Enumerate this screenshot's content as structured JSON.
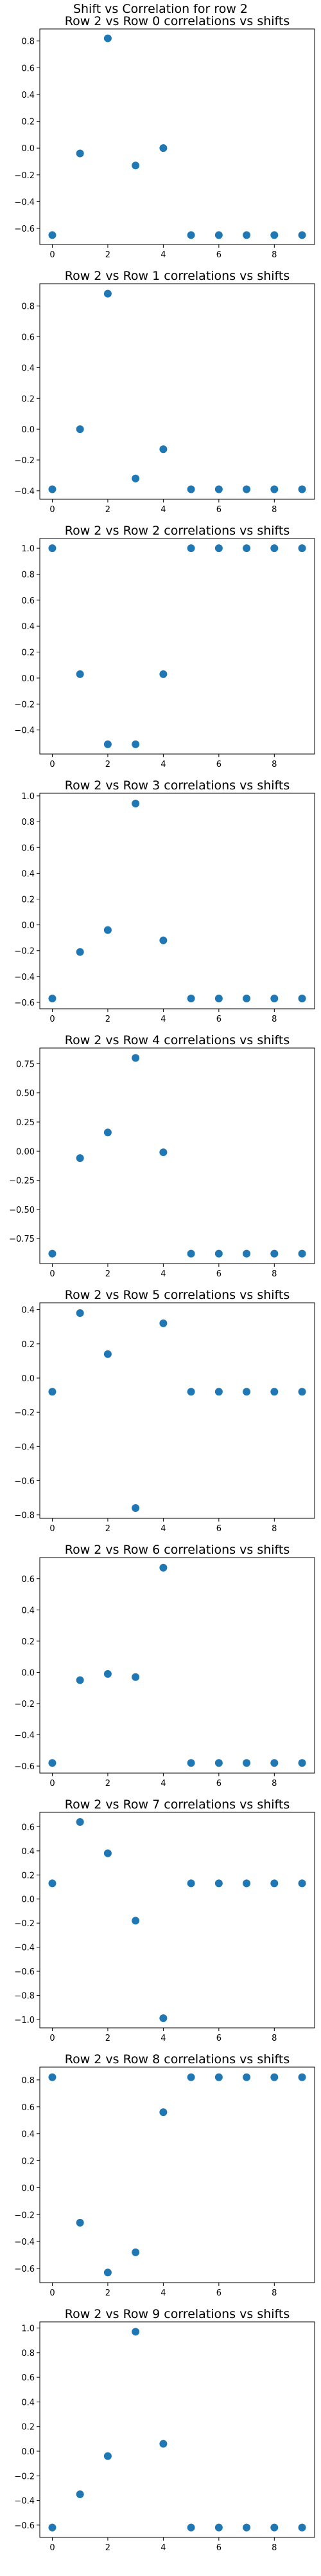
{
  "figure": {
    "suptitle": "Shift vs Correlation for row 2"
  },
  "style": {
    "marker_color": "#1f77b4",
    "axes_color": "#000000",
    "background": "#ffffff"
  },
  "chart_data": [
    {
      "type": "scatter",
      "title": "Row 2 vs Row 0 correlations vs shifts",
      "x": [
        0,
        1,
        2,
        3,
        4,
        5,
        6,
        7,
        8,
        9
      ],
      "y": [
        -0.65,
        -0.04,
        0.82,
        -0.13,
        0.0,
        -0.65,
        -0.65,
        -0.65,
        -0.65,
        -0.65
      ],
      "xticks": [
        0,
        2,
        4,
        6,
        8
      ],
      "yticks": [
        -0.6,
        -0.4,
        -0.2,
        0.0,
        0.2,
        0.4,
        0.6,
        0.8
      ],
      "ytick_labels": [
        "−0.6",
        "−0.4",
        "−0.2",
        "0.0",
        "0.2",
        "0.4",
        "0.6",
        "0.8"
      ],
      "xlim": [
        -0.45,
        9.45
      ],
      "ylim": [
        -0.72,
        0.89
      ],
      "grid": false
    },
    {
      "type": "scatter",
      "title": "Row 2 vs Row 1 correlations vs shifts",
      "x": [
        0,
        1,
        2,
        3,
        4,
        5,
        6,
        7,
        8,
        9
      ],
      "y": [
        -0.39,
        0.0,
        0.88,
        -0.32,
        -0.13,
        -0.39,
        -0.39,
        -0.39,
        -0.39,
        -0.39
      ],
      "xticks": [
        0,
        2,
        4,
        6,
        8
      ],
      "yticks": [
        -0.4,
        -0.2,
        0.0,
        0.2,
        0.4,
        0.6,
        0.8
      ],
      "ytick_labels": [
        "−0.4",
        "−0.2",
        "0.0",
        "0.2",
        "0.4",
        "0.6",
        "0.8"
      ],
      "xlim": [
        -0.45,
        9.45
      ],
      "ylim": [
        -0.455,
        0.945
      ],
      "grid": false
    },
    {
      "type": "scatter",
      "title": "Row 2 vs Row 2 correlations vs shifts",
      "x": [
        0,
        1,
        2,
        3,
        4,
        5,
        6,
        7,
        8,
        9
      ],
      "y": [
        1.0,
        0.03,
        -0.51,
        -0.51,
        0.03,
        1.0,
        1.0,
        1.0,
        1.0,
        1.0
      ],
      "xticks": [
        0,
        2,
        4,
        6,
        8
      ],
      "yticks": [
        -0.4,
        -0.2,
        0.0,
        0.2,
        0.4,
        0.6,
        0.8,
        1.0
      ],
      "ytick_labels": [
        "−0.4",
        "−0.2",
        "0.0",
        "0.2",
        "0.4",
        "0.6",
        "0.8",
        "1.0"
      ],
      "xlim": [
        -0.45,
        9.45
      ],
      "ylim": [
        -0.585,
        1.075
      ],
      "grid": false
    },
    {
      "type": "scatter",
      "title": "Row 2 vs Row 3 correlations vs shifts",
      "x": [
        0,
        1,
        2,
        3,
        4,
        5,
        6,
        7,
        8,
        9
      ],
      "y": [
        -0.57,
        -0.21,
        -0.04,
        0.94,
        -0.12,
        -0.57,
        -0.57,
        -0.57,
        -0.57,
        -0.57
      ],
      "xticks": [
        0,
        2,
        4,
        6,
        8
      ],
      "yticks": [
        -0.6,
        -0.4,
        -0.2,
        0.0,
        0.2,
        0.4,
        0.6,
        0.8,
        1.0
      ],
      "ytick_labels": [
        "−0.6",
        "−0.4",
        "−0.2",
        "0.0",
        "0.2",
        "0.4",
        "0.6",
        "0.8",
        "1.0"
      ],
      "xlim": [
        -0.45,
        9.45
      ],
      "ylim": [
        -0.65,
        1.02
      ],
      "grid": false
    },
    {
      "type": "scatter",
      "title": "Row 2 vs Row 4 correlations vs shifts",
      "x": [
        0,
        1,
        2,
        3,
        4,
        5,
        6,
        7,
        8,
        9
      ],
      "y": [
        -0.88,
        -0.06,
        0.16,
        0.8,
        -0.01,
        -0.88,
        -0.88,
        -0.88,
        -0.88,
        -0.88
      ],
      "xticks": [
        0,
        2,
        4,
        6,
        8
      ],
      "yticks": [
        -0.75,
        -0.5,
        -0.25,
        0.0,
        0.25,
        0.5,
        0.75
      ],
      "ytick_labels": [
        "−0.75",
        "−0.50",
        "−0.25",
        "0.00",
        "0.25",
        "0.50",
        "0.75"
      ],
      "xlim": [
        -0.45,
        9.45
      ],
      "ylim": [
        -0.965,
        0.885
      ],
      "grid": false
    },
    {
      "type": "scatter",
      "title": "Row 2 vs Row 5 correlations vs shifts",
      "x": [
        0,
        1,
        2,
        3,
        4,
        5,
        6,
        7,
        8,
        9
      ],
      "y": [
        -0.08,
        0.38,
        0.14,
        -0.76,
        0.32,
        -0.08,
        -0.08,
        -0.08,
        -0.08,
        -0.08
      ],
      "xticks": [
        0,
        2,
        4,
        6,
        8
      ],
      "yticks": [
        -0.8,
        -0.6,
        -0.4,
        -0.2,
        0.0,
        0.2,
        0.4
      ],
      "ytick_labels": [
        "−0.8",
        "−0.6",
        "−0.4",
        "−0.2",
        "0.0",
        "0.2",
        "0.4"
      ],
      "xlim": [
        -0.45,
        9.45
      ],
      "ylim": [
        -0.82,
        0.44
      ],
      "grid": false
    },
    {
      "type": "scatter",
      "title": "Row 2 vs Row 6 correlations vs shifts",
      "x": [
        0,
        1,
        2,
        3,
        4,
        5,
        6,
        7,
        8,
        9
      ],
      "y": [
        -0.58,
        -0.05,
        -0.01,
        -0.03,
        0.67,
        -0.58,
        -0.58,
        -0.58,
        -0.58,
        -0.58
      ],
      "xticks": [
        0,
        2,
        4,
        6,
        8
      ],
      "yticks": [
        -0.6,
        -0.4,
        -0.2,
        0.0,
        0.2,
        0.4,
        0.6
      ],
      "ytick_labels": [
        "−0.6",
        "−0.4",
        "−0.2",
        "0.0",
        "0.2",
        "0.4",
        "0.6"
      ],
      "xlim": [
        -0.45,
        9.45
      ],
      "ylim": [
        -0.645,
        0.735
      ],
      "grid": false
    },
    {
      "type": "scatter",
      "title": "Row 2 vs Row 7 correlations vs shifts",
      "x": [
        0,
        1,
        2,
        3,
        4,
        5,
        6,
        7,
        8,
        9
      ],
      "y": [
        0.13,
        0.64,
        0.38,
        -0.18,
        -0.99,
        0.13,
        0.13,
        0.13,
        0.13,
        0.13
      ],
      "xticks": [
        0,
        2,
        4,
        6,
        8
      ],
      "yticks": [
        -1.0,
        -0.8,
        -0.6,
        -0.4,
        -0.2,
        0.0,
        0.2,
        0.4,
        0.6
      ],
      "ytick_labels": [
        "−1.0",
        "−0.8",
        "−0.6",
        "−0.4",
        "−0.2",
        "0.0",
        "0.2",
        "0.4",
        "0.6"
      ],
      "xlim": [
        -0.45,
        9.45
      ],
      "ylim": [
        -1.07,
        0.72
      ],
      "grid": false
    },
    {
      "type": "scatter",
      "title": "Row 2 vs Row 8 correlations vs shifts",
      "x": [
        0,
        1,
        2,
        3,
        4,
        5,
        6,
        7,
        8,
        9
      ],
      "y": [
        0.82,
        -0.26,
        -0.63,
        -0.48,
        0.56,
        0.82,
        0.82,
        0.82,
        0.82,
        0.82
      ],
      "xticks": [
        0,
        2,
        4,
        6,
        8
      ],
      "yticks": [
        -0.6,
        -0.4,
        -0.2,
        0.0,
        0.2,
        0.4,
        0.6,
        0.8
      ],
      "ytick_labels": [
        "−0.6",
        "−0.4",
        "−0.2",
        "0.0",
        "0.2",
        "0.4",
        "0.6",
        "0.8"
      ],
      "xlim": [
        -0.45,
        9.45
      ],
      "ylim": [
        -0.705,
        0.895
      ],
      "grid": false
    },
    {
      "type": "scatter",
      "title": "Row 2 vs Row 9 correlations vs shifts",
      "x": [
        0,
        1,
        2,
        3,
        4,
        5,
        6,
        7,
        8,
        9
      ],
      "y": [
        -0.62,
        -0.35,
        -0.04,
        0.97,
        0.06,
        -0.62,
        -0.62,
        -0.62,
        -0.62,
        -0.62
      ],
      "xticks": [
        0,
        2,
        4,
        6,
        8
      ],
      "yticks": [
        -0.6,
        -0.4,
        -0.2,
        0.0,
        0.2,
        0.4,
        0.6,
        0.8,
        1.0
      ],
      "ytick_labels": [
        "−0.6",
        "−0.4",
        "−0.2",
        "0.0",
        "0.2",
        "0.4",
        "0.6",
        "0.8",
        "1.0"
      ],
      "xlim": [
        -0.45,
        9.45
      ],
      "ylim": [
        -0.7,
        1.05
      ],
      "grid": false
    }
  ]
}
